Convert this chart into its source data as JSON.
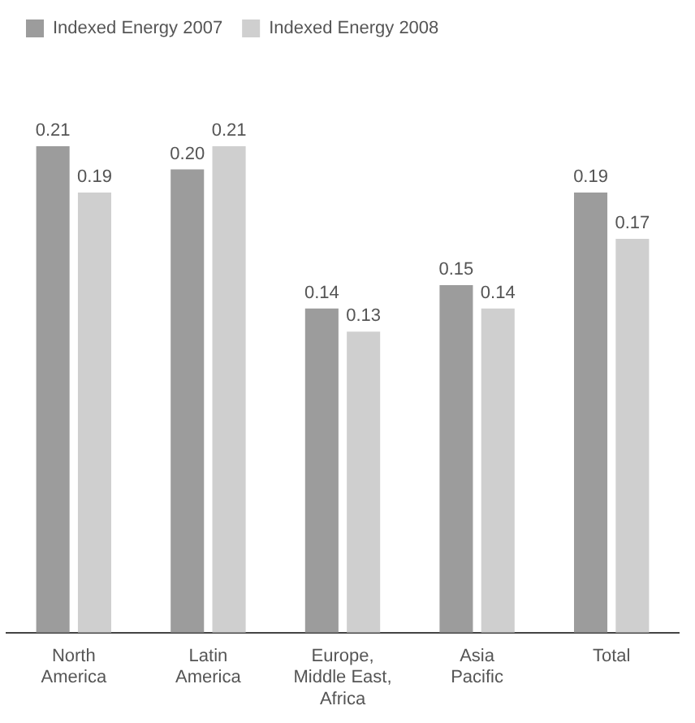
{
  "chart_data": {
    "type": "bar",
    "categories": [
      "North\nAmerica",
      "Latin\nAmerica",
      "Europe,\nMiddle East,\nAfrica",
      "Asia\nPacific",
      "Total"
    ],
    "series": [
      {
        "name": "Indexed Energy 2007",
        "color": "#9c9c9c",
        "values": [
          0.21,
          0.2,
          0.14,
          0.15,
          0.19
        ],
        "value_labels": [
          "0.21",
          "0.20",
          "0.14",
          "0.15",
          "0.19"
        ]
      },
      {
        "name": "Indexed Energy 2008",
        "color": "#cfcfcf",
        "values": [
          0.19,
          0.21,
          0.13,
          0.14,
          0.17
        ],
        "value_labels": [
          "0.19",
          "0.21",
          "0.13",
          "0.14",
          "0.17"
        ]
      }
    ],
    "legend": "top left",
    "grid": false
  }
}
